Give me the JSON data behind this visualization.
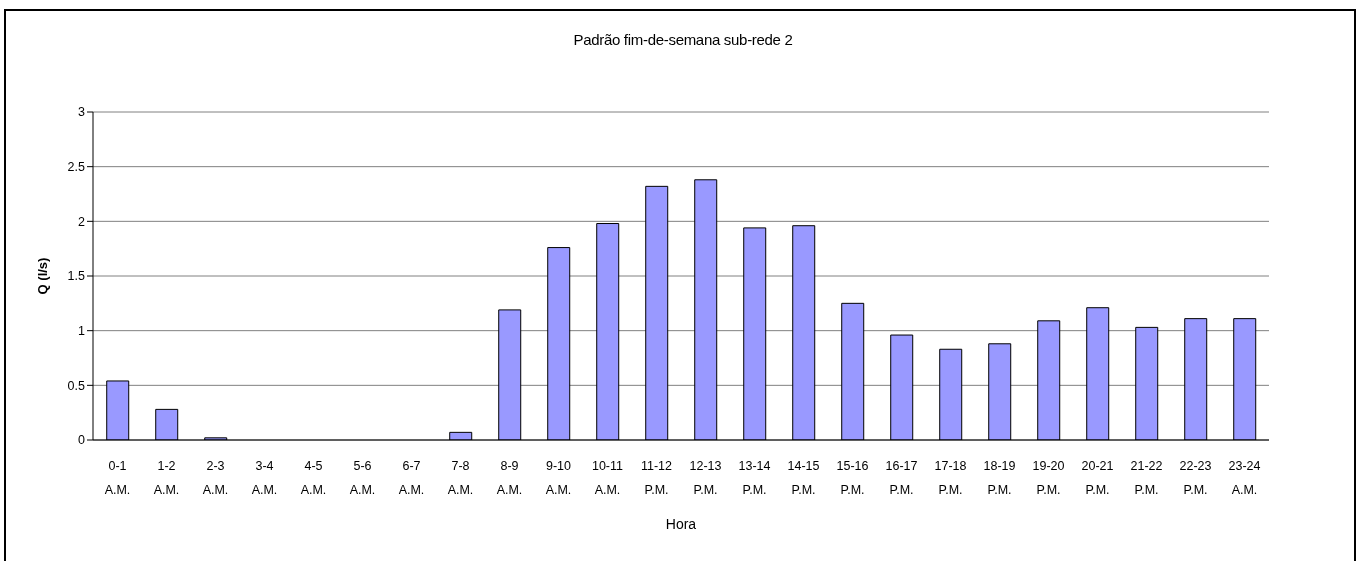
{
  "chart_data": {
    "type": "bar",
    "title": "Padrão fim-de-semana sub-rede 2",
    "xlabel": "Hora",
    "ylabel": "Q (l/s)",
    "categories": [
      "0-1 A.M.",
      "1-2 A.M.",
      "2-3 A.M.",
      "3-4 A.M.",
      "4-5 A.M.",
      "5-6 A.M.",
      "6-7 A.M.",
      "7-8 A.M.",
      "8-9 A.M.",
      "9-10 A.M.",
      "10-11 A.M.",
      "11-12 P.M.",
      "12-13 P.M.",
      "13-14 P.M.",
      "14-15 P.M.",
      "15-16 P.M.",
      "16-17 P.M.",
      "17-18 P.M.",
      "18-19 P.M.",
      "19-20 P.M.",
      "20-21 P.M.",
      "21-22 P.M.",
      "22-23 P.M.",
      "23-24 A.M."
    ],
    "values": [
      0.54,
      0.28,
      0.02,
      0,
      0,
      0,
      0,
      0.07,
      1.19,
      1.76,
      1.98,
      2.32,
      2.38,
      1.94,
      1.96,
      1.25,
      0.96,
      0.83,
      0.88,
      1.09,
      1.21,
      1.03,
      1.11,
      1.11
    ],
    "color": "#9999ff",
    "ylim": [
      0,
      3
    ],
    "yticks": [
      0,
      0.5,
      1,
      1.5,
      2,
      2.5,
      3
    ],
    "grid": "y"
  }
}
